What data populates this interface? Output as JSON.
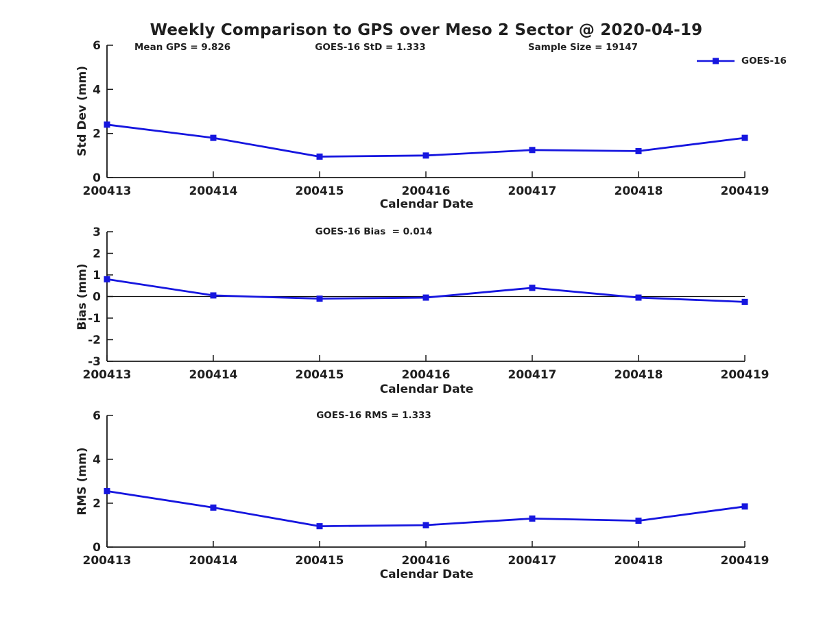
{
  "title": "Weekly Comparison to GPS over Meso 2 Sector @ 2020-04-19",
  "legend": {
    "label": "GOES-16"
  },
  "colors": {
    "line": "#1616df",
    "marker": "#1616df",
    "axis": "#1a1a1a",
    "text": "#1f1f1f",
    "zero_line": "#111111",
    "background": "#ffffff"
  },
  "chart_data": [
    {
      "type": "line",
      "categories": [
        "200413",
        "200414",
        "200415",
        "200416",
        "200417",
        "200418",
        "200419"
      ],
      "series": [
        {
          "name": "GOES-16",
          "values": [
            2.4,
            1.8,
            0.95,
            1.0,
            1.25,
            1.2,
            1.8
          ]
        }
      ],
      "xlabel": "Calendar Date",
      "ylabel": "Std Dev (mm)",
      "ylim": [
        0,
        6
      ],
      "yticks": [
        0,
        2,
        4,
        6
      ],
      "grid": false,
      "marker": "square",
      "legend_position": "upper-right",
      "annotations": [
        "Mean GPS = 9.826",
        "GOES-16 StD = 1.333",
        "Sample Size = 19147"
      ]
    },
    {
      "type": "line",
      "categories": [
        "200413",
        "200414",
        "200415",
        "200416",
        "200417",
        "200418",
        "200419"
      ],
      "series": [
        {
          "name": "GOES-16",
          "values": [
            0.8,
            0.05,
            -0.1,
            -0.05,
            0.4,
            -0.05,
            -0.25
          ]
        }
      ],
      "xlabel": "Calendar Date",
      "ylabel": "Bias (mm)",
      "ylim": [
        -3,
        3
      ],
      "yticks": [
        -3,
        -2,
        -1,
        0,
        1,
        2,
        3
      ],
      "grid": false,
      "marker": "square",
      "zero_line": true,
      "annotations": [
        "GOES-16 Bias  = 0.014"
      ]
    },
    {
      "type": "line",
      "categories": [
        "200413",
        "200414",
        "200415",
        "200416",
        "200417",
        "200418",
        "200419"
      ],
      "series": [
        {
          "name": "GOES-16",
          "values": [
            2.55,
            1.8,
            0.95,
            1.0,
            1.3,
            1.2,
            1.85
          ]
        }
      ],
      "xlabel": "Calendar Date",
      "ylabel": "RMS (mm)",
      "ylim": [
        0,
        6
      ],
      "yticks": [
        0,
        2,
        4,
        6
      ],
      "grid": false,
      "marker": "square",
      "annotations": [
        "GOES-16 RMS = 1.333"
      ]
    }
  ]
}
